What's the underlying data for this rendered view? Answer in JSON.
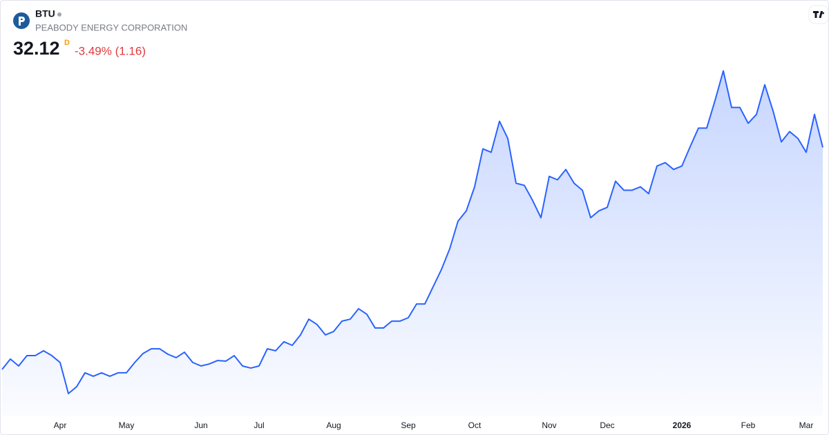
{
  "header": {
    "symbol": "BTU",
    "company": "PEABODY ENERGY CORPORATION",
    "price": "32.12",
    "interval": "D",
    "change": "-3.49% (1.16)"
  },
  "chart_data": {
    "type": "area",
    "categories": [
      null,
      null,
      null,
      null,
      null,
      null,
      null,
      "Apr",
      null,
      null,
      null,
      null,
      null,
      null,
      null,
      "May",
      null,
      null,
      null,
      null,
      null,
      null,
      null,
      null,
      "Jun",
      null,
      null,
      null,
      null,
      null,
      null,
      "Jul",
      null,
      null,
      null,
      null,
      null,
      null,
      null,
      null,
      "Aug",
      null,
      null,
      null,
      null,
      null,
      null,
      null,
      null,
      "Sep",
      null,
      null,
      null,
      null,
      null,
      null,
      null,
      "Oct",
      null,
      null,
      null,
      null,
      null,
      null,
      null,
      null,
      "Nov",
      null,
      null,
      null,
      null,
      null,
      null,
      "Dec",
      null,
      null,
      null,
      null,
      null,
      null,
      null,
      null,
      "2026",
      null,
      null,
      null,
      null,
      null,
      null,
      null,
      "Feb",
      null,
      null,
      null,
      null,
      null,
      null,
      "Mar",
      null,
      null
    ],
    "series": [
      {
        "name": "BTU",
        "color": "#2962ff",
        "values": [
          13.39,
          14.26,
          13.68,
          14.55,
          14.55,
          14.96,
          14.55,
          13.97,
          11.35,
          11.93,
          13.1,
          12.81,
          13.1,
          12.81,
          13.1,
          13.1,
          13.97,
          14.73,
          15.13,
          15.13,
          14.67,
          14.38,
          14.84,
          13.97,
          13.68,
          13.85,
          14.14,
          14.09,
          14.55,
          13.68,
          13.5,
          13.68,
          15.13,
          14.96,
          15.72,
          15.42,
          16.3,
          17.63,
          17.17,
          16.3,
          16.59,
          17.46,
          17.63,
          18.51,
          18.04,
          16.88,
          16.88,
          17.46,
          17.46,
          17.75,
          18.91,
          18.91,
          20.37,
          21.82,
          23.57,
          25.9,
          26.77,
          28.8,
          32.0,
          31.71,
          34.33,
          32.88,
          29.1,
          28.92,
          27.64,
          26.19,
          29.68,
          29.39,
          30.26,
          29.1,
          28.51,
          26.19,
          26.77,
          27.06,
          29.27,
          28.51,
          28.51,
          28.8,
          28.22,
          30.55,
          30.84,
          30.26,
          30.55,
          32.18,
          33.75,
          33.75,
          36.08,
          38.58,
          35.49,
          35.49,
          34.16,
          34.91,
          37.41,
          35.2,
          32.59,
          33.46,
          32.88,
          31.71,
          34.91,
          32.12
        ]
      }
    ],
    "ylim": [
      9.6,
      39.9
    ]
  }
}
